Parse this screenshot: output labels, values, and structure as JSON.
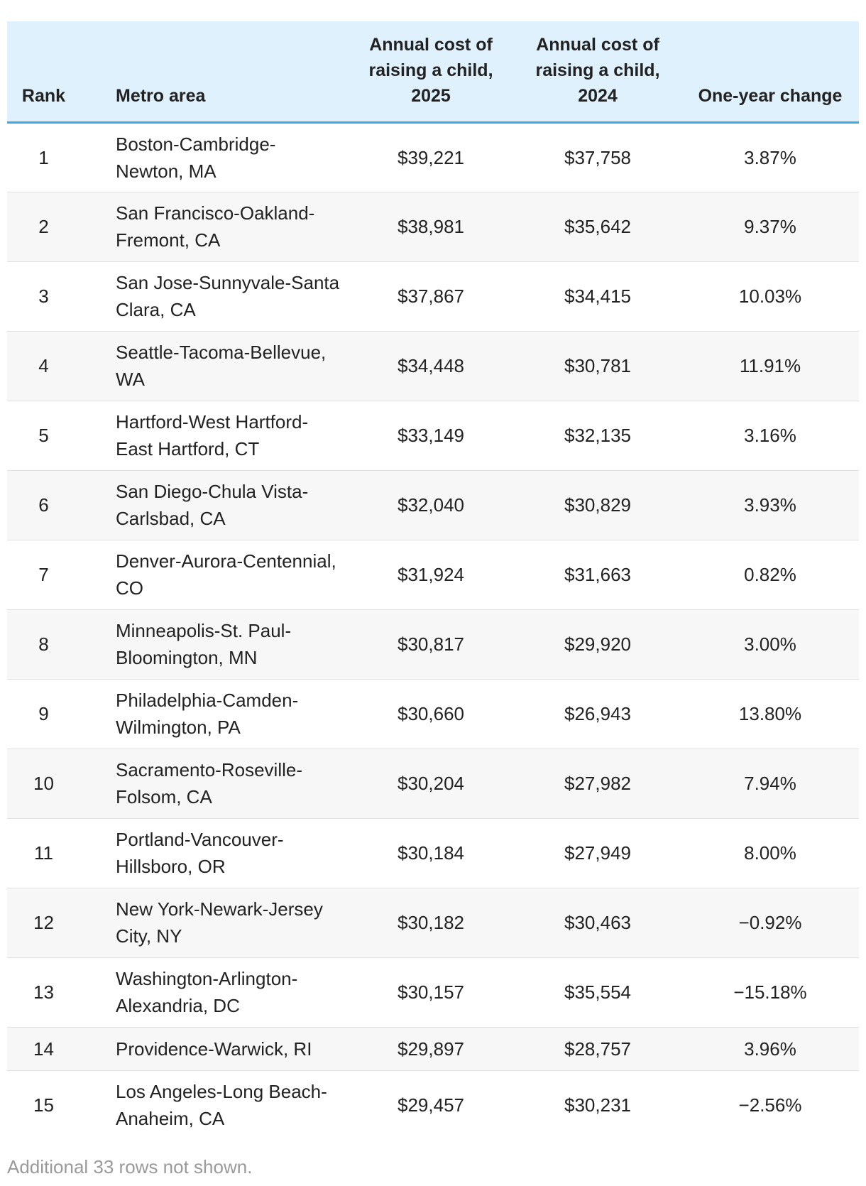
{
  "table": {
    "headers": {
      "rank": "Rank",
      "metro": "Metro area",
      "cost_2025": "Annual cost of raising a child, 2025",
      "cost_2024": "Annual cost of raising a child, 2024",
      "change": "One-year change"
    },
    "rows": [
      {
        "rank": "1",
        "metro": "Boston-Cambridge-Newton, MA",
        "cost_2025": "$39,221",
        "cost_2024": "$37,758",
        "change": "3.87%"
      },
      {
        "rank": "2",
        "metro": "San Francisco-Oakland-Fremont, CA",
        "cost_2025": "$38,981",
        "cost_2024": "$35,642",
        "change": "9.37%"
      },
      {
        "rank": "3",
        "metro": "San Jose-Sunnyvale-Santa Clara, CA",
        "cost_2025": "$37,867",
        "cost_2024": "$34,415",
        "change": "10.03%"
      },
      {
        "rank": "4",
        "metro": "Seattle-Tacoma-Bellevue, WA",
        "cost_2025": "$34,448",
        "cost_2024": "$30,781",
        "change": "11.91%"
      },
      {
        "rank": "5",
        "metro": "Hartford-West Hartford-East Hartford, CT",
        "cost_2025": "$33,149",
        "cost_2024": "$32,135",
        "change": "3.16%"
      },
      {
        "rank": "6",
        "metro": "San Diego-Chula Vista-Carlsbad, CA",
        "cost_2025": "$32,040",
        "cost_2024": "$30,829",
        "change": "3.93%"
      },
      {
        "rank": "7",
        "metro": "Denver-Aurora-Centennial, CO",
        "cost_2025": "$31,924",
        "cost_2024": "$31,663",
        "change": "0.82%"
      },
      {
        "rank": "8",
        "metro": "Minneapolis-St. Paul-Bloomington, MN",
        "cost_2025": "$30,817",
        "cost_2024": "$29,920",
        "change": "3.00%"
      },
      {
        "rank": "9",
        "metro": "Philadelphia-Camden-Wilmington, PA",
        "cost_2025": "$30,660",
        "cost_2024": "$26,943",
        "change": "13.80%"
      },
      {
        "rank": "10",
        "metro": "Sacramento-Roseville-Folsom, CA",
        "cost_2025": "$30,204",
        "cost_2024": "$27,982",
        "change": "7.94%"
      },
      {
        "rank": "11",
        "metro": "Portland-Vancouver-Hillsboro, OR",
        "cost_2025": "$30,184",
        "cost_2024": "$27,949",
        "change": "8.00%"
      },
      {
        "rank": "12",
        "metro": "New York-Newark-Jersey City, NY",
        "cost_2025": "$30,182",
        "cost_2024": "$30,463",
        "change": "−0.92%"
      },
      {
        "rank": "13",
        "metro": "Washington-Arlington-Alexandria, DC",
        "cost_2025": "$30,157",
        "cost_2024": "$35,554",
        "change": "−15.18%"
      },
      {
        "rank": "14",
        "metro": "Providence-Warwick, RI",
        "cost_2025": "$29,897",
        "cost_2024": "$28,757",
        "change": "3.96%"
      },
      {
        "rank": "15",
        "metro": "Los Angeles-Long Beach-Anaheim, CA",
        "cost_2025": "$29,457",
        "cost_2024": "$30,231",
        "change": "−2.56%"
      }
    ]
  },
  "footnote": "Additional 33 rows not shown.",
  "colors": {
    "header_background": "#dff1fc",
    "header_rule": "#3ca9e0",
    "stripe": "#f7f7f7",
    "footnote_text": "#9a9a9a"
  }
}
